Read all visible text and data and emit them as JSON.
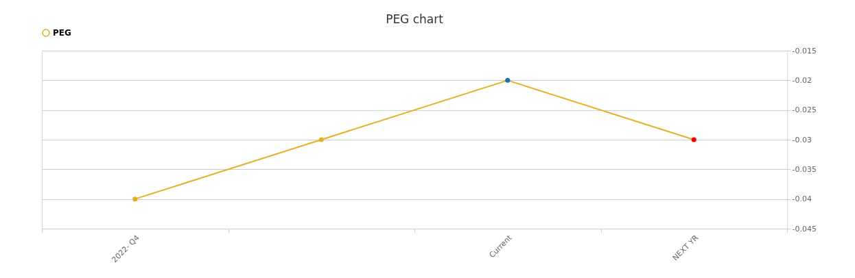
{
  "chart_data": {
    "type": "line",
    "title": "PEG chart",
    "categories": [
      "2022- Q4",
      null,
      "Current",
      "NEXT YR"
    ],
    "series": [
      {
        "name": "PEG",
        "color": "#e3b022",
        "values": [
          -0.04,
          -0.03,
          -0.02,
          -0.03
        ],
        "colors": [
          "#e3b022",
          "#e3b022",
          "#1a73b0",
          "#ff0000"
        ]
      }
    ],
    "ylim": [
      -0.045,
      -0.015
    ],
    "yticks": [
      -0.045,
      -0.04,
      -0.035,
      -0.03,
      -0.025,
      -0.02,
      -0.015
    ],
    "grid": "y",
    "legend": "top",
    "marker": "circle",
    "line_style": "solid"
  }
}
